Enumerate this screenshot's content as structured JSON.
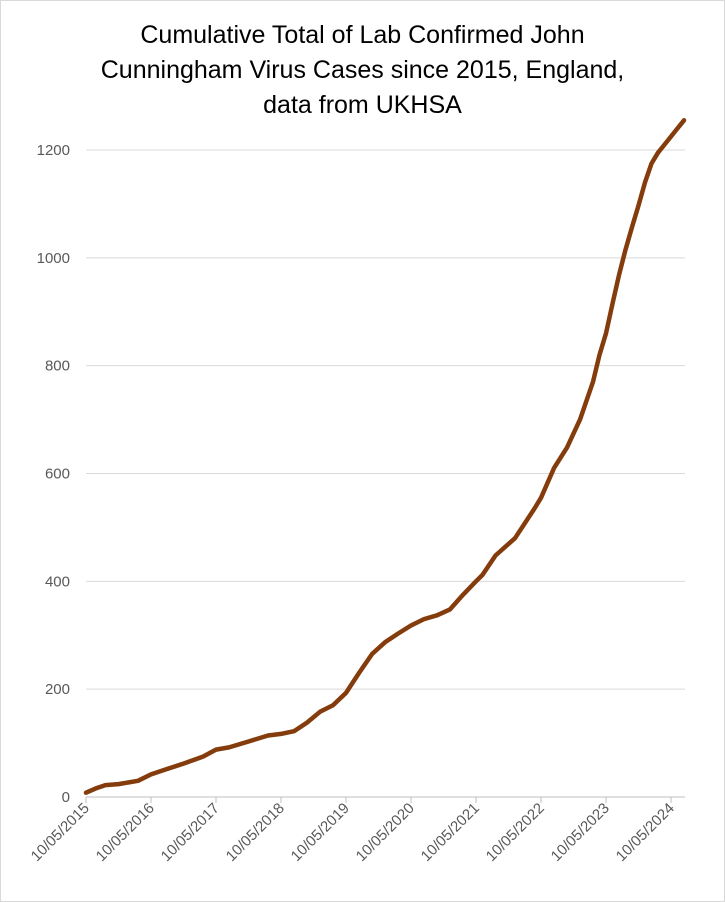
{
  "chart_data": {
    "type": "line",
    "title_lines": [
      "Cumulative Total of Lab Confirmed John",
      "Cunningham Virus Cases since 2015, England,",
      "data from UKHSA"
    ],
    "xlabel": "",
    "ylabel": "",
    "ylim": [
      0,
      1200
    ],
    "y_ticks": [
      "0",
      "200",
      "400",
      "600",
      "800",
      "1000",
      "1200"
    ],
    "x_ticks": [
      "10/05/2015",
      "10/05/2016",
      "10/05/2017",
      "10/05/2018",
      "10/05/2019",
      "10/05/2020",
      "10/05/2021",
      "10/05/2022",
      "10/05/2023",
      "10/05/2024"
    ],
    "x_unit": "years since 10/05/2015",
    "grid": true,
    "series": [
      {
        "name": "Cumulative cases",
        "color": "#843c0c",
        "x": [
          0,
          0.15,
          0.3,
          0.5,
          0.8,
          1.0,
          1.2,
          1.5,
          1.8,
          2.0,
          2.2,
          2.5,
          2.8,
          3.0,
          3.2,
          3.4,
          3.6,
          3.8,
          4.0,
          4.2,
          4.4,
          4.6,
          4.8,
          5.0,
          5.2,
          5.4,
          5.6,
          5.8,
          6.0,
          6.1,
          6.3,
          6.6,
          6.9,
          7.0,
          7.2,
          7.4,
          7.6,
          7.8,
          7.9,
          8.0,
          8.1,
          8.2,
          8.3,
          8.4,
          8.5,
          8.6,
          8.7,
          8.8,
          8.9,
          9.0,
          9.1,
          9.2
        ],
        "values": [
          8,
          16,
          22,
          24,
          30,
          42,
          50,
          62,
          75,
          88,
          92,
          103,
          114,
          117,
          122,
          138,
          158,
          170,
          193,
          230,
          265,
          287,
          303,
          318,
          330,
          337,
          348,
          375,
          400,
          412,
          448,
          480,
          535,
          555,
          610,
          648,
          700,
          770,
          820,
          860,
          915,
          968,
          1015,
          1057,
          1097,
          1140,
          1175,
          1195,
          1210,
          1225,
          1240,
          1255
        ]
      }
    ]
  }
}
